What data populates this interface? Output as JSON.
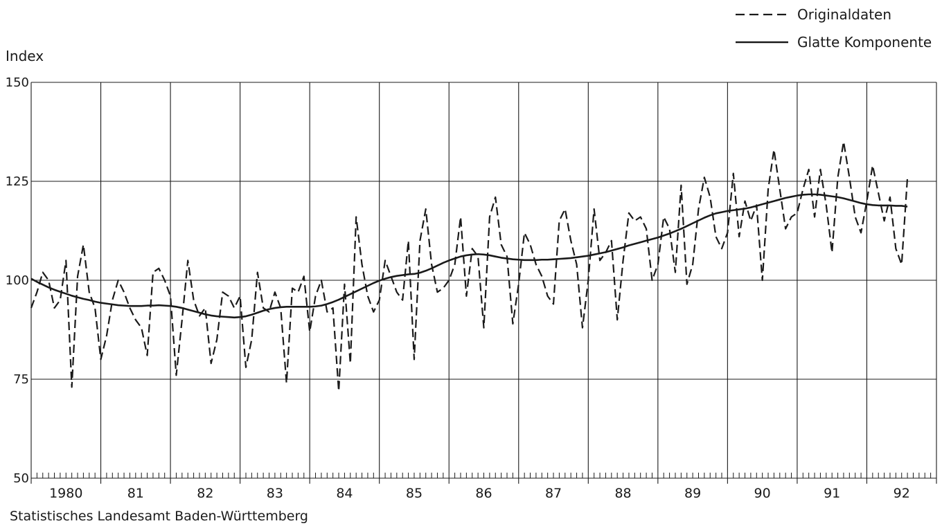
{
  "chart_data": {
    "type": "line",
    "ylabel": "Index",
    "source": "Statistisches Landesamt Baden-Württemberg",
    "ylim": [
      50,
      150
    ],
    "yticks": [
      "50",
      "75",
      "100",
      "125",
      "150"
    ],
    "xlim": [
      1980,
      1993
    ],
    "xtick_labels": [
      "1980",
      "81",
      "82",
      "83",
      "84",
      "85",
      "86",
      "87",
      "88",
      "89",
      "90",
      "91",
      "92"
    ],
    "grid": true,
    "legend_placement": "top-right",
    "series": [
      {
        "name": "Originaldaten",
        "style": "dashed",
        "frequency": "monthly",
        "start": "1980-01",
        "values": [
          93,
          97,
          102,
          100,
          93,
          95,
          105,
          73,
          101,
          109,
          97,
          93,
          80,
          86,
          95,
          100,
          97,
          93,
          90,
          88,
          81,
          102,
          103,
          100,
          96,
          76,
          90,
          105,
          95,
          91,
          93,
          79,
          85,
          97,
          96,
          93,
          96,
          78,
          85,
          102,
          93,
          92,
          97,
          93,
          74,
          98,
          97,
          101,
          87,
          96,
          100,
          92,
          93,
          72,
          99,
          79,
          116,
          104,
          96,
          92,
          95,
          105,
          101,
          97,
          95,
          110,
          80,
          110,
          118,
          104,
          97,
          98,
          100,
          104,
          116,
          96,
          108,
          106,
          88,
          116,
          121,
          109,
          106,
          89,
          99,
          112,
          109,
          104,
          101,
          96,
          94,
          115,
          118,
          110,
          104,
          88,
          100,
          118,
          105,
          107,
          110,
          90,
          105,
          117,
          115,
          116,
          113,
          100,
          104,
          116,
          113,
          102,
          124,
          99,
          104,
          118,
          126,
          121,
          111,
          108,
          112,
          127,
          111,
          120,
          115,
          119,
          100,
          123,
          133,
          123,
          113,
          116,
          117,
          123,
          128,
          116,
          128,
          119,
          107,
          126,
          135,
          126,
          116,
          112,
          120,
          129,
          122,
          115,
          121,
          108,
          104,
          126
        ]
      },
      {
        "name": "Glatte Komponente",
        "style": "solid",
        "frequency": "monthly",
        "start": "1980-01",
        "values": [
          100.4,
          99.6,
          98.9,
          98.2,
          97.6,
          97.1,
          96.6,
          96.1,
          95.7,
          95.3,
          95.0,
          94.6,
          94.3,
          94.1,
          93.9,
          93.7,
          93.6,
          93.5,
          93.5,
          93.5,
          93.6,
          93.6,
          93.7,
          93.6,
          93.5,
          93.3,
          93.0,
          92.6,
          92.2,
          91.8,
          91.4,
          91.1,
          90.9,
          90.8,
          90.7,
          90.6,
          90.7,
          90.9,
          91.3,
          91.8,
          92.3,
          92.7,
          93.0,
          93.2,
          93.3,
          93.3,
          93.3,
          93.3,
          93.3,
          93.4,
          93.6,
          94.0,
          94.5,
          95.1,
          95.8,
          96.5,
          97.2,
          97.9,
          98.6,
          99.3,
          99.9,
          100.4,
          100.8,
          101.1,
          101.3,
          101.5,
          101.6,
          101.9,
          102.4,
          103.0,
          103.7,
          104.4,
          105.0,
          105.5,
          106.0,
          106.3,
          106.5,
          106.6,
          106.5,
          106.3,
          106.0,
          105.7,
          105.5,
          105.3,
          105.2,
          105.1,
          105.1,
          105.1,
          105.2,
          105.2,
          105.3,
          105.4,
          105.5,
          105.6,
          105.8,
          106.0,
          106.2,
          106.5,
          106.8,
          107.1,
          107.5,
          107.9,
          108.3,
          108.8,
          109.2,
          109.6,
          110.0,
          110.4,
          110.8,
          111.3,
          111.8,
          112.4,
          113.0,
          113.7,
          114.4,
          115.1,
          115.8,
          116.4,
          116.9,
          117.2,
          117.5,
          117.7,
          117.9,
          118.1,
          118.4,
          118.8,
          119.2,
          119.6,
          120.0,
          120.4,
          120.8,
          121.1,
          121.4,
          121.6,
          121.7,
          121.7,
          121.6,
          121.4,
          121.2,
          121.0,
          120.7,
          120.3,
          119.9,
          119.5,
          119.2,
          119.0,
          118.9,
          118.9,
          118.9,
          118.8,
          118.8,
          118.6
        ]
      }
    ]
  }
}
